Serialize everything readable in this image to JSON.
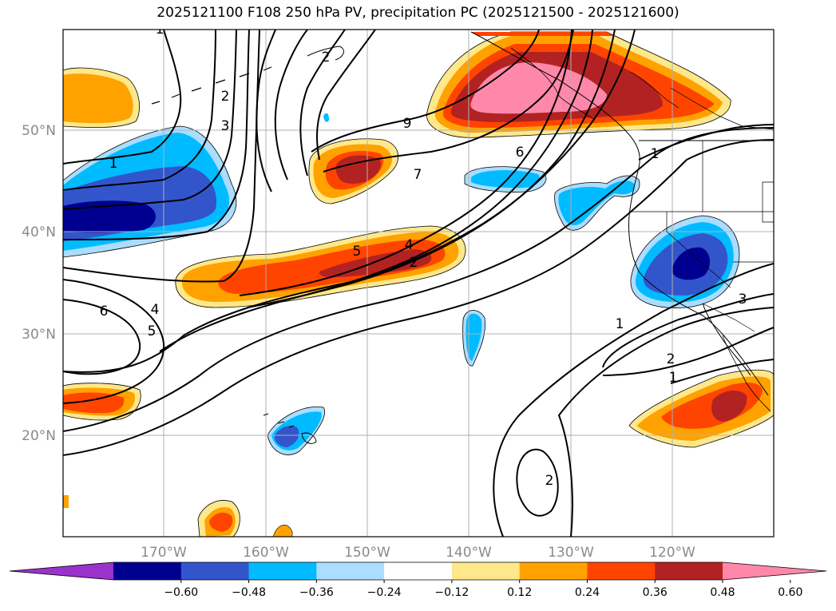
{
  "title": "2025121100 F108 250 hPa PV, precipitation PC (2025121500 - 2025121600)",
  "map": {
    "lat_ticks": [
      "50°N",
      "40°N",
      "30°N",
      "20°N"
    ],
    "lon_ticks": [
      "170°W",
      "160°W",
      "150°W",
      "140°W",
      "130°W",
      "120°W"
    ],
    "grid": true
  },
  "colorbar": {
    "levels": [
      "−0.60",
      "−0.48",
      "−0.36",
      "−0.24",
      "−0.12",
      "0.12",
      "0.24",
      "0.36",
      "0.48",
      "0.60"
    ],
    "colors": [
      "#9933cc",
      "#000090",
      "#3355cc",
      "#00bbff",
      "#aaddff",
      "#ffffff",
      "#ffe88a",
      "#ffa200",
      "#ff4400",
      "#b22222",
      "#ff88aa"
    ],
    "extend": "both"
  },
  "contour_labels": [
    "1",
    "2",
    "3",
    "9",
    "6",
    "7",
    "1",
    "5",
    "4",
    "2",
    "6",
    "4",
    "5",
    "1",
    "2",
    "1",
    "3",
    "2",
    "1",
    "2"
  ],
  "colors": {
    "pos_light": "#ffe88a",
    "pos_orange": "#ffa200",
    "pos_red": "#ff4400",
    "pos_dark": "#b22222",
    "pos_pink": "#ff88aa",
    "neg_light": "#aaddff",
    "neg_cyan": "#00bbff",
    "neg_blue": "#3355cc",
    "neg_navy": "#000090"
  }
}
